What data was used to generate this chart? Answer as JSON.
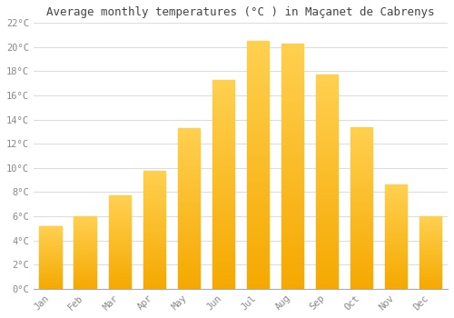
{
  "title": "Average monthly temperatures (°C ) in Maçanet de Cabrenys",
  "months": [
    "Jan",
    "Feb",
    "Mar",
    "Apr",
    "May",
    "Jun",
    "Jul",
    "Aug",
    "Sep",
    "Oct",
    "Nov",
    "Dec"
  ],
  "values": [
    5.2,
    6.0,
    7.7,
    9.8,
    13.3,
    17.3,
    20.5,
    20.3,
    17.7,
    13.4,
    8.6,
    6.0
  ],
  "bar_color_top": "#FFD050",
  "bar_color_bottom": "#F5A800",
  "background_color": "#FFFFFF",
  "plot_bg_color": "#FFFFFF",
  "grid_color": "#DDDDDD",
  "ylim": [
    0,
    22
  ],
  "yticks": [
    0,
    2,
    4,
    6,
    8,
    10,
    12,
    14,
    16,
    18,
    20,
    22
  ],
  "ytick_labels": [
    "0°C",
    "2°C",
    "4°C",
    "6°C",
    "8°C",
    "10°C",
    "12°C",
    "14°C",
    "16°C",
    "18°C",
    "20°C",
    "22°C"
  ],
  "title_fontsize": 9,
  "tick_fontsize": 7.5,
  "tick_color": "#888888",
  "spine_color": "#AAAAAA"
}
